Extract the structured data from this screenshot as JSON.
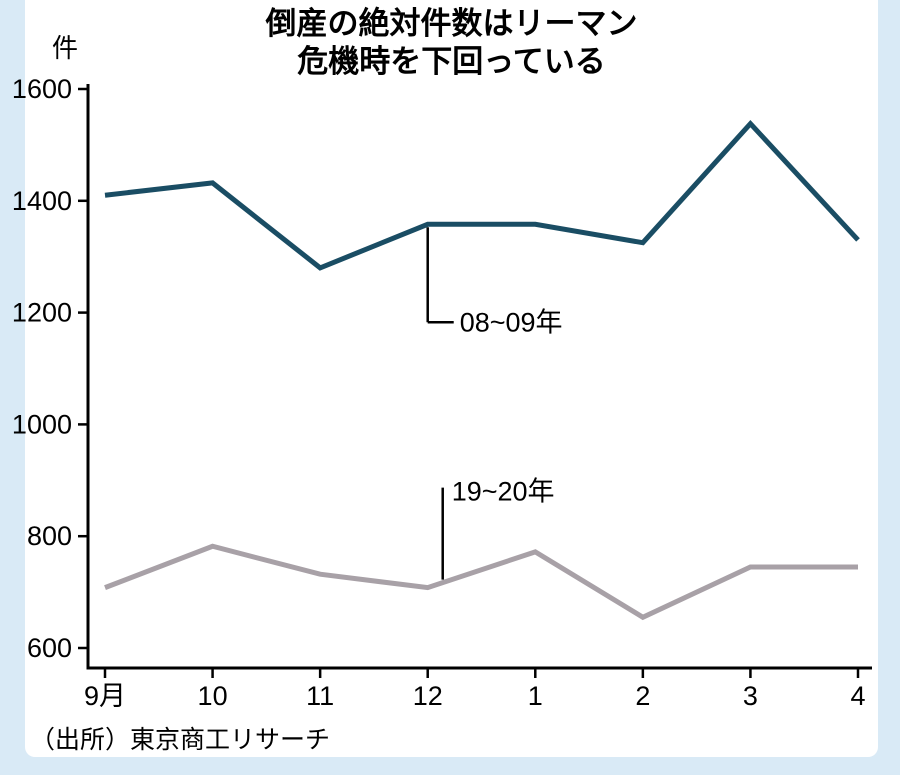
{
  "page": {
    "background": "#d9eaf6",
    "panel_background": "#ffffff"
  },
  "chart_data": {
    "type": "line",
    "title_lines": [
      "倒産の絶対件数はリーマン",
      "危機時を下回っている"
    ],
    "unit_label": "件",
    "categories": [
      "9月",
      "10",
      "11",
      "12",
      "1",
      "2",
      "3",
      "4"
    ],
    "series": [
      {
        "name": "08~09年",
        "color": "#1a4d64",
        "values": [
          1410,
          1432,
          1280,
          1358,
          1358,
          1325,
          1538,
          1330
        ]
      },
      {
        "name": "19~20年",
        "color": "#a8a1a7",
        "values": [
          708,
          782,
          732,
          708,
          772,
          655,
          745,
          745
        ]
      }
    ],
    "ylim": [
      600,
      1600
    ],
    "yticks": [
      600,
      800,
      1000,
      1200,
      1400,
      1600
    ],
    "annotations": [
      {
        "text": "08~09年",
        "series": 0,
        "category_index": 3,
        "direction": "down"
      },
      {
        "text": "19~20年",
        "series": 1,
        "category_index": 3,
        "direction": "up"
      }
    ],
    "axis_color": "#000000",
    "legend_position": "inline-annotations",
    "grid": false,
    "source": "（出所）東京商工リサーチ"
  }
}
